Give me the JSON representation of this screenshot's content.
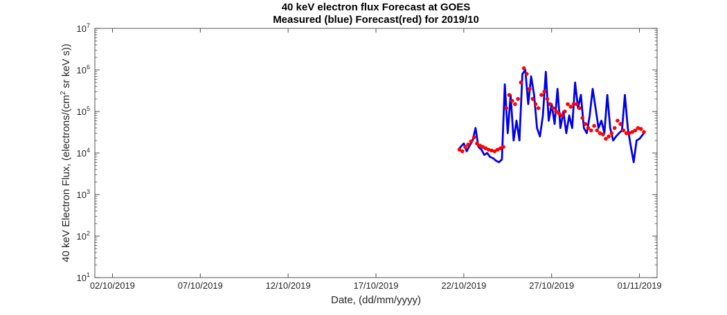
{
  "chart_data": {
    "type": "line",
    "title": "40 keV electron flux Forecast at GOES",
    "subtitle": "Measured (blue) Forecast(red) for 2019/10",
    "xlabel": "Date, (dd/mm/yyyy)",
    "ylabel": {
      "prefix": "40 keV Electron Flux, (electrons/(cm",
      "superscript": "2",
      "suffix": " sr keV s))"
    },
    "yscale": "log",
    "ylim": [
      10,
      10000000
    ],
    "xlim": [
      "2019-10-01",
      "2019-11-02"
    ],
    "x_ticks": [
      {
        "date": "2019-10-02",
        "label": "02/10/2019"
      },
      {
        "date": "2019-10-07",
        "label": "07/10/2019"
      },
      {
        "date": "2019-10-12",
        "label": "12/10/2019"
      },
      {
        "date": "2019-10-17",
        "label": "17/10/2019"
      },
      {
        "date": "2019-10-22",
        "label": "22/10/2019"
      },
      {
        "date": "2019-10-27",
        "label": "27/10/2019"
      },
      {
        "date": "2019-11-01",
        "label": "01/11/2019"
      }
    ],
    "y_ticks": [
      {
        "value": 10,
        "base": "10",
        "exp": "1"
      },
      {
        "value": 100,
        "base": "10",
        "exp": "2"
      },
      {
        "value": 1000,
        "base": "10",
        "exp": "3"
      },
      {
        "value": 10000,
        "base": "10",
        "exp": "4"
      },
      {
        "value": 100000,
        "base": "10",
        "exp": "5"
      },
      {
        "value": 1000000,
        "base": "10",
        "exp": "6"
      },
      {
        "value": 10000000,
        "base": "10",
        "exp": "7"
      }
    ],
    "grid": false,
    "series": [
      {
        "style": "line",
        "color": "#0000e6",
        "x": [
          "2019-10-21T18:00",
          "2019-10-22T00:00",
          "2019-10-22T04:00",
          "2019-10-22T08:00",
          "2019-10-22T12:00",
          "2019-10-22T16:00",
          "2019-10-22T20:00",
          "2019-10-23T00:00",
          "2019-10-23T04:00",
          "2019-10-23T08:00",
          "2019-10-23T12:00",
          "2019-10-23T16:00",
          "2019-10-23T20:00",
          "2019-10-24T00:00",
          "2019-10-24T04:00",
          "2019-10-24T08:00",
          "2019-10-24T12:00",
          "2019-10-24T16:00",
          "2019-10-24T20:00",
          "2019-10-25T00:00",
          "2019-10-25T04:00",
          "2019-10-25T08:00",
          "2019-10-25T12:00",
          "2019-10-25T16:00",
          "2019-10-25T20:00",
          "2019-10-26T00:00",
          "2019-10-26T04:00",
          "2019-10-26T08:00",
          "2019-10-26T12:00",
          "2019-10-26T16:00",
          "2019-10-26T20:00",
          "2019-10-27T00:00",
          "2019-10-27T04:00",
          "2019-10-27T08:00",
          "2019-10-27T12:00",
          "2019-10-27T16:00",
          "2019-10-27T20:00",
          "2019-10-28T00:00",
          "2019-10-28T04:00",
          "2019-10-28T08:00",
          "2019-10-28T12:00",
          "2019-10-28T16:00",
          "2019-10-28T20:00",
          "2019-10-29T00:00",
          "2019-10-29T04:00",
          "2019-10-29T08:00",
          "2019-10-29T12:00",
          "2019-10-29T16:00",
          "2019-10-29T20:00",
          "2019-10-30T00:00",
          "2019-10-30T04:00",
          "2019-10-30T08:00",
          "2019-10-30T12:00",
          "2019-10-30T16:00",
          "2019-10-30T20:00",
          "2019-10-31T00:00",
          "2019-10-31T04:00",
          "2019-10-31T08:00",
          "2019-10-31T12:00",
          "2019-10-31T16:00",
          "2019-10-31T20:00",
          "2019-11-01T00:00",
          "2019-11-01T06:00"
        ],
        "y": [
          13000,
          17000,
          11000,
          15000,
          20000,
          40000,
          14000,
          12000,
          9000,
          10000,
          8000,
          7500,
          6500,
          6000,
          7000,
          450000,
          30000,
          250000,
          20000,
          60000,
          20000,
          800000,
          1000000,
          150000,
          700000,
          250000,
          40000,
          25000,
          80000,
          900000,
          60000,
          150000,
          50000,
          350000,
          40000,
          100000,
          30000,
          80000,
          40000,
          500000,
          120000,
          250000,
          40000,
          30000,
          80000,
          350000,
          120000,
          40000,
          60000,
          30000,
          250000,
          40000,
          20000,
          25000,
          30000,
          35000,
          250000,
          40000,
          15000,
          6000,
          20000,
          22000,
          30000
        ]
      },
      {
        "style": "markers",
        "color": "#ff0000",
        "x": [
          "2019-10-21T18:00",
          "2019-10-21T22:00",
          "2019-10-22T02:00",
          "2019-10-22T06:00",
          "2019-10-22T10:00",
          "2019-10-22T14:00",
          "2019-10-22T18:00",
          "2019-10-22T22:00",
          "2019-10-23T02:00",
          "2019-10-23T06:00",
          "2019-10-23T10:00",
          "2019-10-23T14:00",
          "2019-10-23T18:00",
          "2019-10-23T22:00",
          "2019-10-24T02:00",
          "2019-10-24T06:00",
          "2019-10-24T10:00",
          "2019-10-24T14:00",
          "2019-10-24T18:00",
          "2019-10-24T22:00",
          "2019-10-25T02:00",
          "2019-10-25T06:00",
          "2019-10-25T10:00",
          "2019-10-25T14:00",
          "2019-10-25T18:00",
          "2019-10-25T22:00",
          "2019-10-26T02:00",
          "2019-10-26T06:00",
          "2019-10-26T10:00",
          "2019-10-26T14:00",
          "2019-10-26T18:00",
          "2019-10-26T22:00",
          "2019-10-27T02:00",
          "2019-10-27T06:00",
          "2019-10-27T10:00",
          "2019-10-27T14:00",
          "2019-10-27T18:00",
          "2019-10-27T22:00",
          "2019-10-28T02:00",
          "2019-10-28T06:00",
          "2019-10-28T10:00",
          "2019-10-28T14:00",
          "2019-10-28T18:00",
          "2019-10-28T22:00",
          "2019-10-29T02:00",
          "2019-10-29T06:00",
          "2019-10-29T10:00",
          "2019-10-29T14:00",
          "2019-10-29T18:00",
          "2019-10-29T22:00",
          "2019-10-30T02:00",
          "2019-10-30T06:00",
          "2019-10-30T10:00",
          "2019-10-30T14:00",
          "2019-10-30T18:00",
          "2019-10-30T22:00",
          "2019-10-31T02:00",
          "2019-10-31T06:00",
          "2019-10-31T10:00",
          "2019-10-31T14:00",
          "2019-10-31T18:00",
          "2019-10-31T22:00",
          "2019-11-01T02:00",
          "2019-11-01T06:00"
        ],
        "y": [
          12000,
          11000,
          14000,
          16000,
          19000,
          24000,
          17000,
          15000,
          14000,
          13000,
          12000,
          11500,
          11000,
          12000,
          13000,
          14000,
          120000,
          250000,
          180000,
          150000,
          200000,
          500000,
          1100000,
          800000,
          350000,
          200000,
          150000,
          120000,
          250000,
          300000,
          200000,
          150000,
          120000,
          100000,
          90000,
          80000,
          100000,
          150000,
          130000,
          150000,
          150000,
          120000,
          70000,
          50000,
          40000,
          35000,
          45000,
          35000,
          30000,
          28000,
          22000,
          25000,
          30000,
          40000,
          60000,
          50000,
          35000,
          30000,
          30000,
          32000,
          35000,
          40000,
          38000,
          32000
        ]
      }
    ]
  }
}
